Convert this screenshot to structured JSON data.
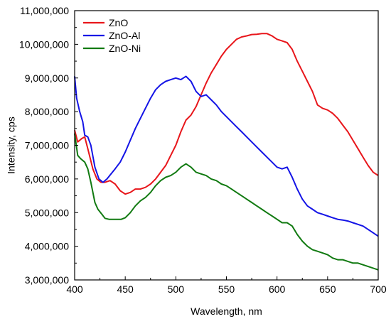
{
  "chart_data": {
    "type": "line",
    "xlabel": "Wavelength, nm",
    "ylabel": "Intensity, cps",
    "xlim": [
      400,
      700
    ],
    "ylim": [
      3000000,
      11000000
    ],
    "x_ticks": [
      400,
      450,
      500,
      550,
      600,
      650,
      700
    ],
    "y_ticks": [
      3000000,
      4000000,
      5000000,
      6000000,
      7000000,
      8000000,
      9000000,
      10000000,
      11000000
    ],
    "x_tick_labels": [
      "400",
      "450",
      "500",
      "550",
      "600",
      "650",
      "700"
    ],
    "y_tick_labels": [
      "3,000,000",
      "4,000,000",
      "5,000,000",
      "6,000,000",
      "7,000,000",
      "8,000,000",
      "9,000,000",
      "10,000,000",
      "11,000,000"
    ],
    "grid": false,
    "legend_position": "top-left",
    "series": [
      {
        "name": "ZnO",
        "color": "#e8161b",
        "x": [
          400,
          403,
          407,
          410,
          413,
          418,
          422,
          426,
          430,
          435,
          440,
          445,
          450,
          455,
          460,
          465,
          470,
          475,
          480,
          485,
          490,
          495,
          500,
          505,
          510,
          515,
          520,
          525,
          530,
          535,
          540,
          545,
          550,
          555,
          560,
          565,
          570,
          575,
          580,
          585,
          590,
          595,
          600,
          605,
          610,
          615,
          620,
          625,
          630,
          635,
          640,
          645,
          650,
          655,
          660,
          665,
          670,
          675,
          680,
          685,
          690,
          695,
          700
        ],
        "values": [
          7450000,
          7100000,
          7200000,
          7250000,
          6900000,
          6300000,
          6000000,
          5900000,
          5900000,
          5950000,
          5850000,
          5650000,
          5550000,
          5600000,
          5700000,
          5700000,
          5750000,
          5850000,
          6000000,
          6200000,
          6400000,
          6700000,
          7000000,
          7400000,
          7750000,
          7900000,
          8150000,
          8500000,
          8850000,
          9150000,
          9400000,
          9650000,
          9850000,
          10000000,
          10150000,
          10220000,
          10250000,
          10290000,
          10300000,
          10320000,
          10320000,
          10250000,
          10150000,
          10100000,
          10050000,
          9850000,
          9500000,
          9200000,
          8900000,
          8600000,
          8200000,
          8100000,
          8050000,
          7950000,
          7800000,
          7600000,
          7400000,
          7150000,
          6900000,
          6650000,
          6400000,
          6200000,
          6100000
        ]
      },
      {
        "name": "ZnO-Al",
        "color": "#1414e6",
        "x": [
          400,
          402,
          405,
          408,
          410,
          413,
          416,
          420,
          424,
          428,
          432,
          436,
          440,
          445,
          450,
          455,
          460,
          465,
          470,
          475,
          480,
          485,
          490,
          495,
          500,
          505,
          510,
          515,
          520,
          525,
          530,
          535,
          540,
          545,
          550,
          555,
          560,
          565,
          570,
          575,
          580,
          585,
          590,
          595,
          600,
          605,
          610,
          615,
          620,
          625,
          630,
          635,
          640,
          645,
          650,
          655,
          660,
          665,
          670,
          675,
          680,
          685,
          690,
          695,
          700
        ],
        "values": [
          9050000,
          8400000,
          8000000,
          7700000,
          7300000,
          7250000,
          7000000,
          6350000,
          6000000,
          5900000,
          6000000,
          6150000,
          6300000,
          6500000,
          6800000,
          7150000,
          7500000,
          7800000,
          8100000,
          8400000,
          8650000,
          8800000,
          8900000,
          8950000,
          9000000,
          8950000,
          9050000,
          8900000,
          8600000,
          8450000,
          8500000,
          8350000,
          8200000,
          8000000,
          7850000,
          7700000,
          7550000,
          7400000,
          7250000,
          7100000,
          6950000,
          6800000,
          6650000,
          6500000,
          6350000,
          6300000,
          6350000,
          6050000,
          5700000,
          5400000,
          5200000,
          5100000,
          5000000,
          4950000,
          4900000,
          4850000,
          4800000,
          4780000,
          4750000,
          4700000,
          4650000,
          4600000,
          4500000,
          4400000,
          4300000
        ]
      },
      {
        "name": "ZnO-Ni",
        "color": "#117a11",
        "x": [
          400,
          403,
          406,
          410,
          413,
          416,
          420,
          423,
          427,
          430,
          434,
          438,
          442,
          446,
          450,
          455,
          460,
          465,
          470,
          475,
          480,
          485,
          490,
          495,
          500,
          505,
          510,
          515,
          520,
          525,
          530,
          535,
          540,
          545,
          550,
          555,
          560,
          565,
          570,
          575,
          580,
          585,
          590,
          595,
          600,
          605,
          610,
          615,
          620,
          625,
          630,
          635,
          640,
          645,
          650,
          655,
          660,
          665,
          670,
          675,
          680,
          685,
          690,
          695,
          700
        ],
        "values": [
          7350000,
          6700000,
          6600000,
          6500000,
          6300000,
          5900000,
          5300000,
          5100000,
          4950000,
          4830000,
          4800000,
          4800000,
          4800000,
          4800000,
          4850000,
          5000000,
          5200000,
          5350000,
          5450000,
          5600000,
          5800000,
          5950000,
          6050000,
          6100000,
          6200000,
          6350000,
          6450000,
          6350000,
          6200000,
          6150000,
          6100000,
          6000000,
          5950000,
          5850000,
          5800000,
          5700000,
          5600000,
          5500000,
          5400000,
          5300000,
          5200000,
          5100000,
          5000000,
          4900000,
          4800000,
          4700000,
          4700000,
          4600000,
          4350000,
          4150000,
          4000000,
          3900000,
          3850000,
          3800000,
          3750000,
          3650000,
          3600000,
          3600000,
          3550000,
          3500000,
          3500000,
          3450000,
          3400000,
          3350000,
          3300000
        ]
      }
    ]
  }
}
